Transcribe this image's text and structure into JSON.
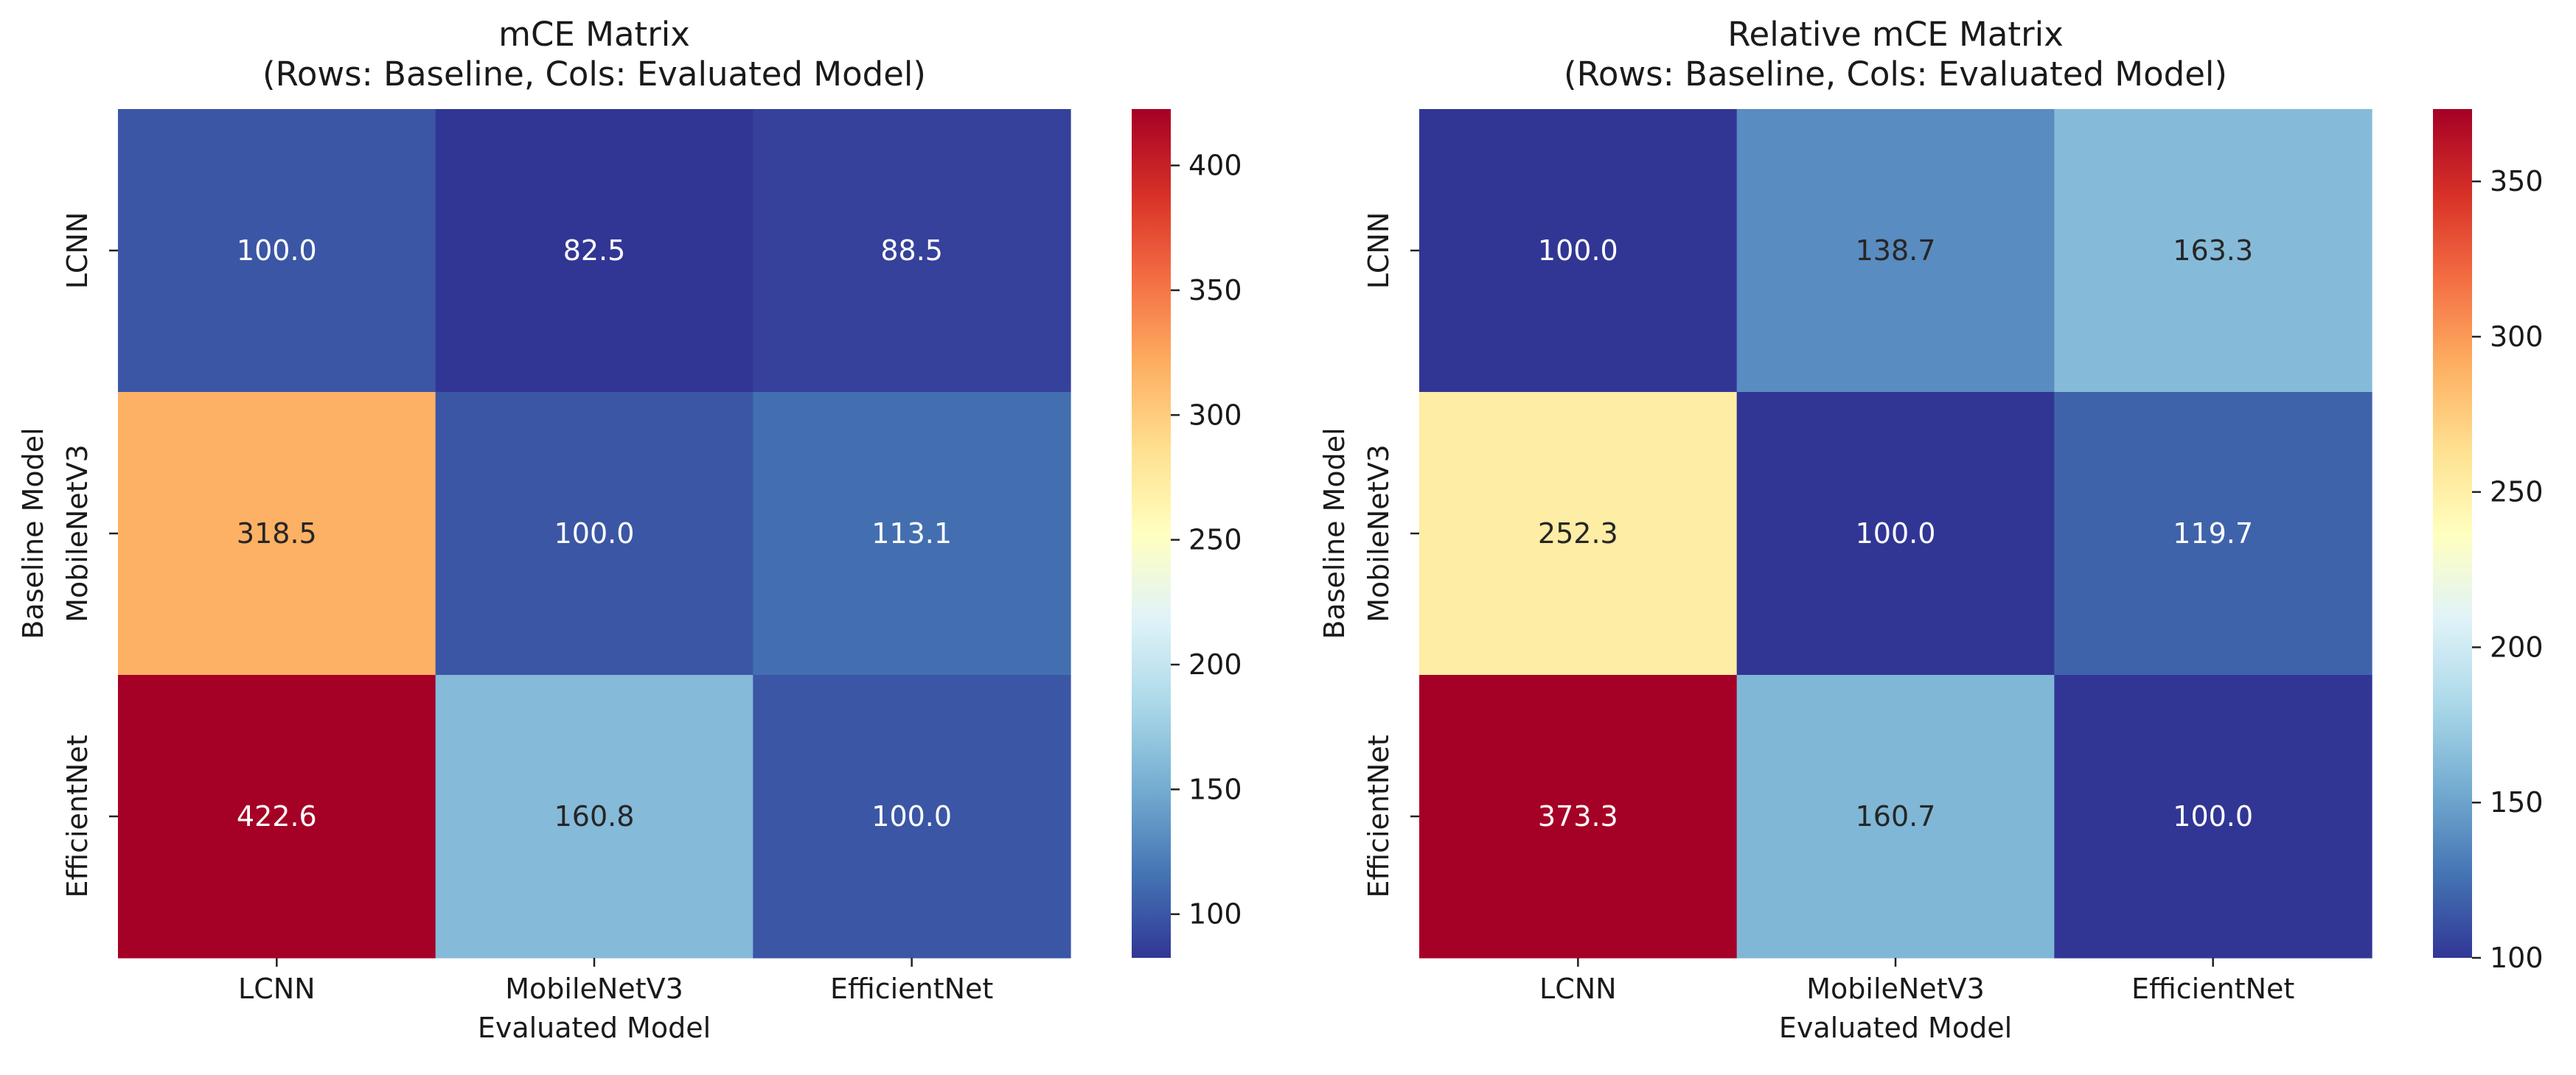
{
  "chart_data": [
    {
      "type": "heatmap",
      "title_lines": [
        "mCE Matrix",
        "(Rows: Baseline, Cols: Evaluated Model)"
      ],
      "xlabel": "Evaluated Model",
      "ylabel": "Baseline Model",
      "x_categories": [
        "LCNN",
        "MobileNetV3",
        "EfficientNet"
      ],
      "y_categories": [
        "LCNN",
        "MobileNetV3",
        "EfficientNet"
      ],
      "values": [
        [
          100.0,
          82.5,
          88.5
        ],
        [
          318.5,
          100.0,
          113.1
        ],
        [
          422.6,
          160.8,
          100.0
        ]
      ],
      "value_labels": [
        [
          "100.0",
          "82.5",
          "88.5"
        ],
        [
          "318.5",
          "100.0",
          "113.1"
        ],
        [
          "422.6",
          "160.8",
          "100.0"
        ]
      ],
      "colormap": "RdYlBu_r",
      "colorbar": {
        "vmin": 82.5,
        "vmax": 422.6,
        "ticks": [
          100,
          150,
          200,
          250,
          300,
          350,
          400
        ],
        "tick_labels": [
          "100",
          "150",
          "200",
          "250",
          "300",
          "350",
          "400"
        ]
      }
    },
    {
      "type": "heatmap",
      "title_lines": [
        "Relative mCE Matrix",
        "(Rows: Baseline, Cols: Evaluated Model)"
      ],
      "xlabel": "Evaluated Model",
      "ylabel": "Baseline Model",
      "x_categories": [
        "LCNN",
        "MobileNetV3",
        "EfficientNet"
      ],
      "y_categories": [
        "LCNN",
        "MobileNetV3",
        "EfficientNet"
      ],
      "values": [
        [
          100.0,
          138.7,
          163.3
        ],
        [
          252.3,
          100.0,
          119.7
        ],
        [
          373.3,
          160.7,
          100.0
        ]
      ],
      "value_labels": [
        [
          "100.0",
          "138.7",
          "163.3"
        ],
        [
          "252.3",
          "100.0",
          "119.7"
        ],
        [
          "373.3",
          "160.7",
          "100.0"
        ]
      ],
      "colormap": "RdYlBu_r",
      "colorbar": {
        "vmin": 100.0,
        "vmax": 373.3,
        "ticks": [
          100,
          150,
          200,
          250,
          300,
          350
        ],
        "tick_labels": [
          "100",
          "150",
          "200",
          "250",
          "300",
          "350"
        ]
      }
    }
  ]
}
